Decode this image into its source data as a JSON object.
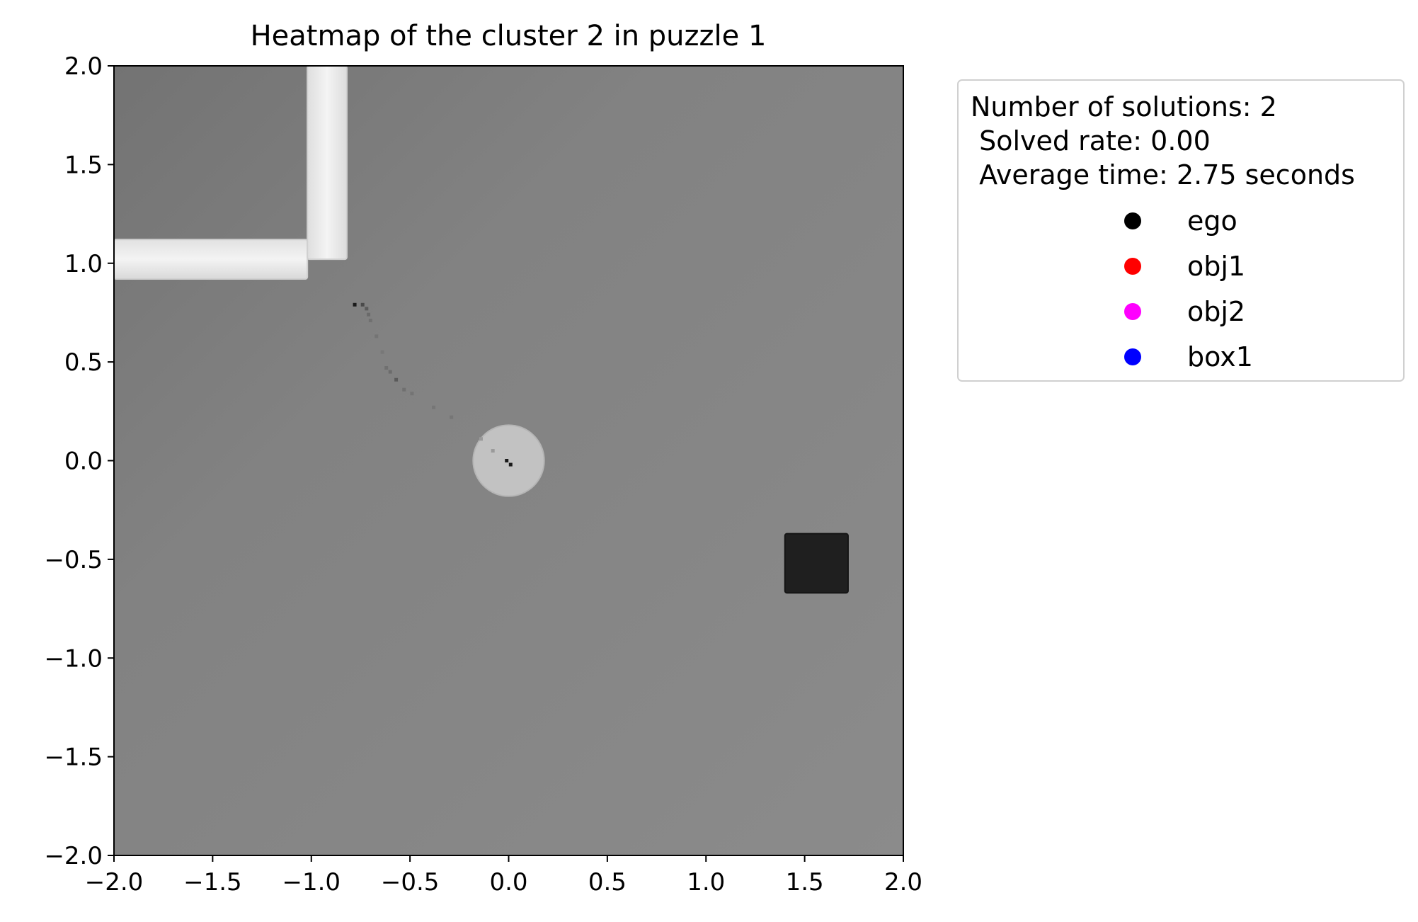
{
  "chart_data": {
    "type": "heatmap",
    "title": "Heatmap of the cluster 2 in puzzle 1",
    "xlabel": "",
    "ylabel": "",
    "xlim": [
      -2.0,
      2.0
    ],
    "ylim": [
      -2.0,
      2.0
    ],
    "x_ticks": [
      -2.0,
      -1.5,
      -1.0,
      -0.5,
      0.0,
      0.5,
      1.0,
      1.5,
      2.0
    ],
    "y_ticks": [
      -2.0,
      -1.5,
      -1.0,
      -0.5,
      0.0,
      0.5,
      1.0,
      1.5,
      2.0
    ],
    "x_tick_labels": [
      "−2.0",
      "−1.5",
      "−1.0",
      "−0.5",
      "0.0",
      "0.5",
      "1.0",
      "1.5",
      "2.0"
    ],
    "y_tick_labels": [
      "−2.0",
      "−1.5",
      "−1.0",
      "−0.5",
      "0.0",
      "0.5",
      "1.0",
      "1.5",
      "2.0"
    ],
    "grid": false,
    "colormap": "grayscale",
    "background_color": "#868686",
    "scene_objects": [
      {
        "name": "wall-horizontal",
        "shape": "rect",
        "x": [
          -2.0,
          -1.02
        ],
        "y": [
          0.92,
          1.12
        ],
        "color": "#efefef"
      },
      {
        "name": "wall-vertical",
        "shape": "rect",
        "x": [
          -1.02,
          -0.82
        ],
        "y": [
          1.02,
          2.0
        ],
        "color": "#efefef"
      },
      {
        "name": "disc",
        "shape": "circle",
        "center": [
          0.0,
          0.0
        ],
        "radius": 0.18,
        "color": "#c2c2c2"
      },
      {
        "name": "box",
        "shape": "rect",
        "x": [
          1.4,
          1.72
        ],
        "y": [
          -0.67,
          -0.37
        ],
        "color": "#1f1f1f"
      }
    ],
    "trail_points": [
      {
        "x": -0.78,
        "y": 0.79,
        "v": "#1a1a1a"
      },
      {
        "x": -0.74,
        "y": 0.79,
        "v": "#4a4a4a"
      },
      {
        "x": -0.72,
        "y": 0.77,
        "v": "#5a5a5a"
      },
      {
        "x": -0.71,
        "y": 0.74,
        "v": "#6a6a6a"
      },
      {
        "x": -0.7,
        "y": 0.71,
        "v": "#707070"
      },
      {
        "x": -0.67,
        "y": 0.63,
        "v": "#747474"
      },
      {
        "x": -0.64,
        "y": 0.55,
        "v": "#787878"
      },
      {
        "x": -0.62,
        "y": 0.47,
        "v": "#707070"
      },
      {
        "x": -0.6,
        "y": 0.45,
        "v": "#6c6c6c"
      },
      {
        "x": -0.57,
        "y": 0.41,
        "v": "#5a5a5a"
      },
      {
        "x": -0.53,
        "y": 0.36,
        "v": "#707070"
      },
      {
        "x": -0.49,
        "y": 0.34,
        "v": "#747474"
      },
      {
        "x": -0.38,
        "y": 0.27,
        "v": "#767676"
      },
      {
        "x": -0.29,
        "y": 0.22,
        "v": "#767676"
      },
      {
        "x": -0.14,
        "y": 0.11,
        "v": "#9a9a9a"
      },
      {
        "x": -0.08,
        "y": 0.05,
        "v": "#9a9a9a"
      },
      {
        "x": -0.01,
        "y": 0.0,
        "v": "#1a1a1a"
      },
      {
        "x": 0.01,
        "y": -0.02,
        "v": "#1a1a1a"
      }
    ],
    "legend": {
      "placement": "outside-right-top",
      "header_lines": [
        "Number of solutions: 2",
        " Solved rate: 0.00",
        " Average time: 2.75 seconds"
      ],
      "entries": [
        {
          "label": "ego",
          "color": "#000000"
        },
        {
          "label": "obj1",
          "color": "#ff0000"
        },
        {
          "label": "obj2",
          "color": "#ff00ff"
        },
        {
          "label": "box1",
          "color": "#0000ff"
        }
      ]
    }
  }
}
